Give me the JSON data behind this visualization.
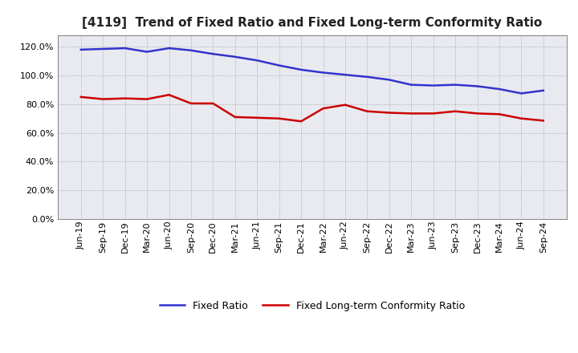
{
  "title": "[4119]  Trend of Fixed Ratio and Fixed Long-term Conformity Ratio",
  "x_labels": [
    "Jun-19",
    "Sep-19",
    "Dec-19",
    "Mar-20",
    "Jun-20",
    "Sep-20",
    "Dec-20",
    "Mar-21",
    "Jun-21",
    "Sep-21",
    "Dec-21",
    "Mar-22",
    "Jun-22",
    "Sep-22",
    "Dec-22",
    "Mar-23",
    "Jun-23",
    "Sep-23",
    "Dec-23",
    "Mar-24",
    "Jun-24",
    "Sep-24"
  ],
  "fixed_ratio": [
    118.0,
    118.5,
    119.0,
    116.5,
    119.0,
    117.5,
    115.0,
    113.0,
    110.5,
    107.0,
    104.0,
    102.0,
    100.5,
    99.0,
    97.0,
    93.5,
    93.0,
    93.5,
    92.5,
    90.5,
    87.5,
    89.5
  ],
  "fixed_lt_ratio": [
    85.0,
    83.5,
    84.0,
    83.5,
    86.5,
    80.5,
    80.5,
    71.0,
    70.5,
    70.0,
    68.0,
    77.0,
    79.5,
    75.0,
    74.0,
    73.5,
    73.5,
    75.0,
    73.5,
    73.0,
    70.0,
    68.5
  ],
  "fixed_ratio_color": "#3333CC",
  "fixed_lt_ratio_color": "#CC0000",
  "ylim": [
    0,
    128
  ],
  "yticks": [
    0,
    20,
    40,
    60,
    80,
    100,
    120
  ],
  "background_color": "#FFFFFF",
  "plot_bg_color": "#E8EAF0",
  "grid_color": "#888888",
  "legend_fixed_ratio": "Fixed Ratio",
  "legend_fixed_lt_ratio": "Fixed Long-term Conformity Ratio",
  "title_fontsize": 11,
  "tick_fontsize": 8,
  "legend_fontsize": 9
}
